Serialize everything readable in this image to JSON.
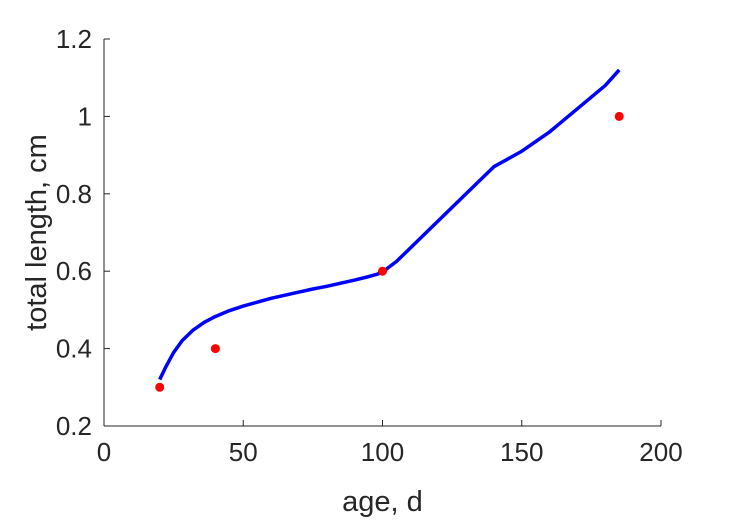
{
  "chart_data": {
    "type": "scatter",
    "title": "",
    "xlabel": "age, d",
    "ylabel": "total length, cm",
    "xlim": [
      0,
      200
    ],
    "ylim": [
      0.2,
      1.2
    ],
    "xticks": [
      0,
      50,
      100,
      150,
      200
    ],
    "yticks": [
      0.2,
      0.4,
      0.6,
      0.8,
      1.0,
      1.2
    ],
    "xtick_labels": [
      "0",
      "50",
      "100",
      "150",
      "200"
    ],
    "ytick_labels": [
      "0.2",
      "0.4",
      "0.6",
      "0.8",
      "1",
      "1.2"
    ],
    "grid": false,
    "series": [
      {
        "kind": "points",
        "color": "#ff0000",
        "x": [
          20,
          40,
          100,
          185
        ],
        "y": [
          0.3,
          0.4,
          0.6,
          1.0
        ]
      },
      {
        "kind": "line",
        "color": "#0000ff",
        "x": [
          20,
          22,
          25,
          28,
          32,
          36,
          40,
          45,
          50,
          55,
          60,
          65,
          70,
          75,
          80,
          85,
          90,
          95,
          98,
          100,
          105,
          110,
          120,
          130,
          140,
          150,
          160,
          170,
          180,
          185
        ],
        "y": [
          0.32,
          0.35,
          0.39,
          0.42,
          0.448,
          0.468,
          0.483,
          0.498,
          0.51,
          0.52,
          0.53,
          0.538,
          0.546,
          0.554,
          0.561,
          0.569,
          0.577,
          0.586,
          0.592,
          0.598,
          0.625,
          0.66,
          0.73,
          0.8,
          0.87,
          0.91,
          0.96,
          1.02,
          1.08,
          1.12
        ]
      }
    ]
  }
}
